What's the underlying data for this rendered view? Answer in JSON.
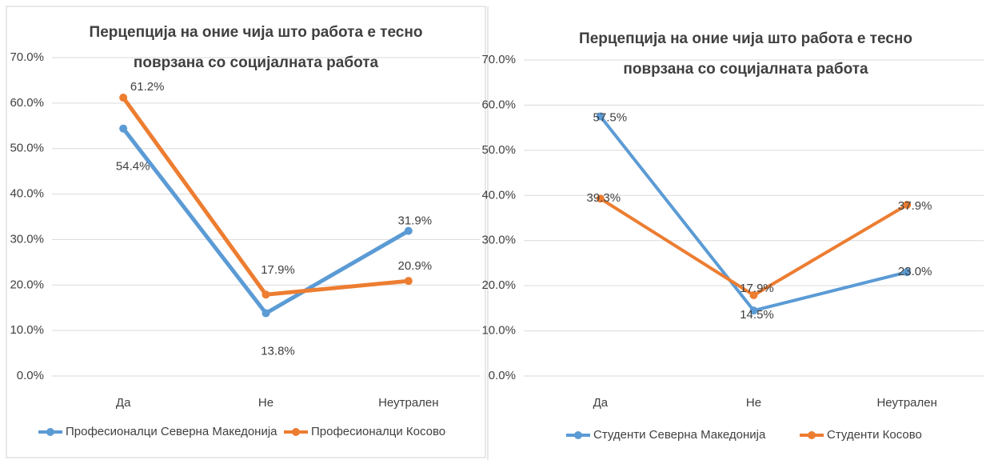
{
  "chart_data": [
    {
      "type": "line",
      "title": "Перцепција на оние чија што работа е тесно поврзана со социјалната работа",
      "categories": [
        "Да",
        "Не",
        "Неутрален"
      ],
      "series": [
        {
          "name": "Професионалци Северна Македонија",
          "color": "#5b9bd5",
          "values": [
            54.4,
            13.8,
            31.9
          ],
          "value_labels": [
            "54.4%",
            "13.8%",
            "31.9%"
          ]
        },
        {
          "name": "Професионалци Косово",
          "color": "#ed7d31",
          "values": [
            61.2,
            17.9,
            20.9
          ],
          "value_labels": [
            "61.2%",
            "17.9%",
            "20.9%"
          ]
        }
      ],
      "ylim": [
        0,
        70
      ],
      "yticks": [
        {
          "value": 0,
          "label": "0.0%"
        },
        {
          "value": 10,
          "label": "10.0%"
        },
        {
          "value": 20,
          "label": "20.0%"
        },
        {
          "value": 30,
          "label": "30.0%"
        },
        {
          "value": 40,
          "label": "40.0%"
        },
        {
          "value": 50,
          "label": "50.0%"
        },
        {
          "value": 60,
          "label": "60.0%"
        },
        {
          "value": 70,
          "label": "70.0%"
        }
      ],
      "grid": true,
      "legend": "bottom"
    },
    {
      "type": "line",
      "title": "Перцепција на оние чија што работа е тесно поврзана со социјалната работа",
      "categories": [
        "Да",
        "Не",
        "Неутрален"
      ],
      "series": [
        {
          "name": "Студенти Северна Македонија",
          "color": "#5b9bd5",
          "values": [
            57.5,
            14.5,
            23.0
          ],
          "value_labels": [
            "57.5%",
            "14.5%",
            "23.0%"
          ]
        },
        {
          "name": "Студенти Косово",
          "color": "#ed7d31",
          "values": [
            39.3,
            17.9,
            37.9
          ],
          "value_labels": [
            "39.3%",
            "17.9%",
            "37.9%"
          ]
        }
      ],
      "ylim": [
        0,
        70
      ],
      "yticks": [
        {
          "value": 0,
          "label": "0.0%"
        },
        {
          "value": 10,
          "label": "10.0%"
        },
        {
          "value": 20,
          "label": "20.0%"
        },
        {
          "value": 30,
          "label": "30.0%"
        },
        {
          "value": 40,
          "label": "40.0%"
        },
        {
          "value": 50,
          "label": "50.0%"
        },
        {
          "value": 60,
          "label": "60.0%"
        },
        {
          "value": 70,
          "label": "70.0%"
        }
      ],
      "grid": true,
      "legend": "bottom"
    }
  ]
}
